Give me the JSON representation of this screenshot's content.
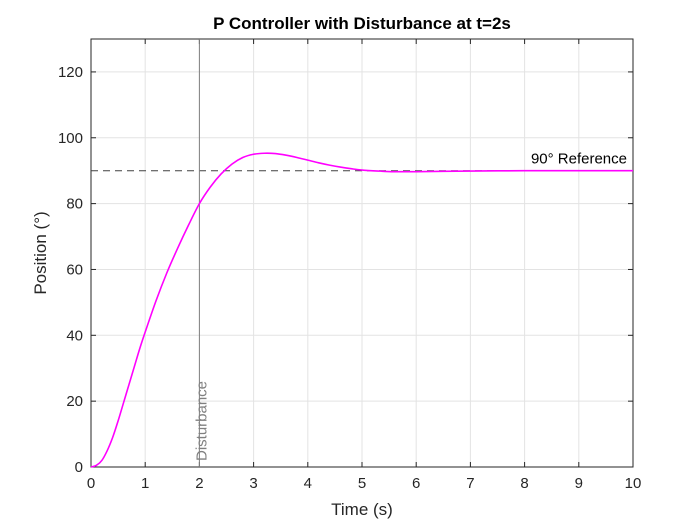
{
  "chart_data": {
    "type": "line",
    "title": "P Controller with Disturbance at t=2s",
    "xlabel": "Time (s)",
    "ylabel": "Position (°)",
    "xlim": [
      0,
      10
    ],
    "ylim": [
      0,
      130
    ],
    "xticks": [
      "0",
      "1",
      "2",
      "3",
      "4",
      "5",
      "6",
      "7",
      "8",
      "9",
      "10"
    ],
    "yticks": [
      "0",
      "20",
      "40",
      "60",
      "80",
      "100",
      "120"
    ],
    "grid": true,
    "series": [
      {
        "color": "#ff00ff",
        "x": [
          0,
          0.1,
          0.2,
          0.3,
          0.4,
          0.5,
          0.6,
          0.7,
          0.8,
          0.9,
          1.0,
          1.2,
          1.4,
          1.6,
          1.8,
          2.0,
          2.2,
          2.4,
          2.6,
          2.8,
          3.0,
          3.2,
          3.4,
          3.6,
          3.8,
          4.0,
          4.2,
          4.4,
          4.6,
          4.8,
          5.0,
          5.3,
          5.6,
          6.0,
          6.5,
          7.0,
          7.5,
          8.0,
          9.0,
          10.0
        ],
        "y": [
          0,
          0.5,
          2,
          5,
          9,
          14,
          19.5,
          25,
          30.5,
          36,
          41,
          50.5,
          59,
          66.5,
          73.5,
          80,
          85,
          89,
          92,
          94,
          95,
          95.3,
          95.2,
          94.7,
          94,
          93.2,
          92.4,
          91.7,
          91.1,
          90.6,
          90.2,
          89.9,
          89.7,
          89.7,
          89.8,
          89.9,
          89.95,
          90,
          90,
          90
        ]
      }
    ],
    "reference": {
      "y": 90,
      "label": "90° Reference",
      "color": "#404040",
      "style": "dashed"
    },
    "disturbance": {
      "x": 2,
      "label": "Disturbance",
      "color": "#808080"
    }
  }
}
